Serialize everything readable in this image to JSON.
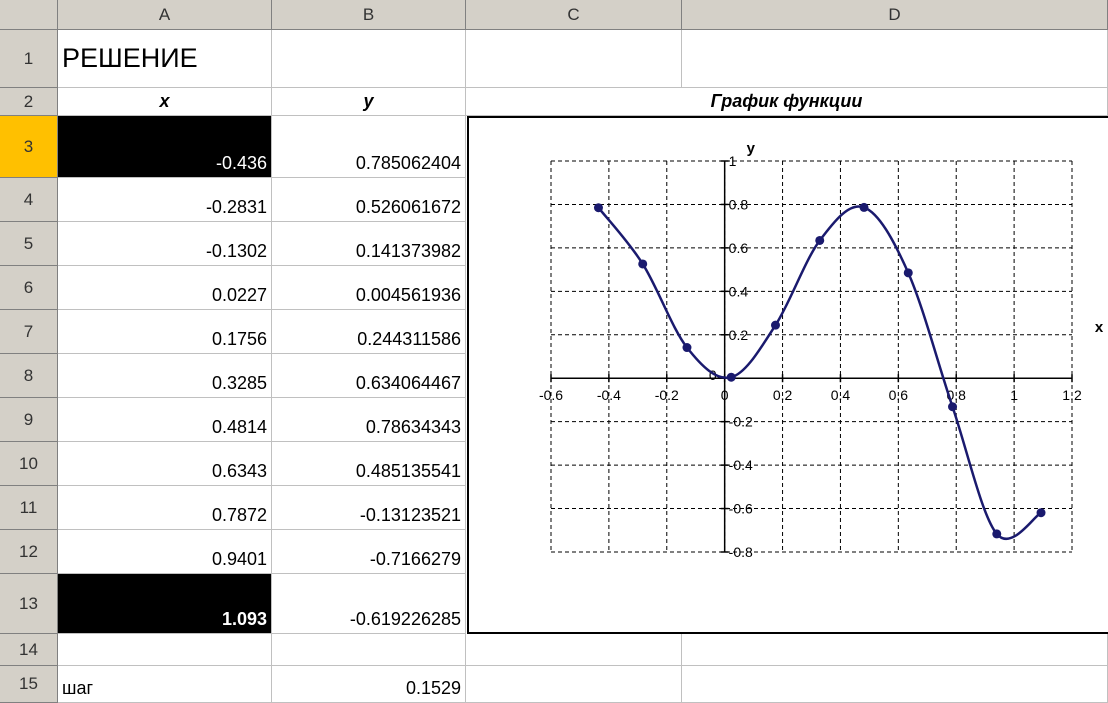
{
  "columns": [
    "A",
    "B",
    "C",
    "D"
  ],
  "rows": [
    "1",
    "2",
    "3",
    "4",
    "5",
    "6",
    "7",
    "8",
    "9",
    "10",
    "11",
    "12",
    "13",
    "14",
    "15"
  ],
  "cells": {
    "a1": "РЕШЕНИЕ",
    "a2": "x",
    "b2": "y",
    "cd2": "График функции",
    "a15": "шаг",
    "b15": "0.1529"
  },
  "table": [
    {
      "x": "-0.436",
      "y": "0.785062404"
    },
    {
      "x": "-0.2831",
      "y": "0.526061672"
    },
    {
      "x": "-0.1302",
      "y": "0.141373982"
    },
    {
      "x": "0.0227",
      "y": "0.004561936"
    },
    {
      "x": "0.1756",
      "y": "0.244311586"
    },
    {
      "x": "0.3285",
      "y": "0.634064467"
    },
    {
      "x": "0.4814",
      "y": "0.78634343"
    },
    {
      "x": "0.6343",
      "y": "0.485135541"
    },
    {
      "x": "0.7872",
      "y": "-0.13123521"
    },
    {
      "x": "0.9401",
      "y": "-0.7166279"
    },
    {
      "x": "1.093",
      "y": "-0.619226285"
    }
  ],
  "chart_data": {
    "type": "line",
    "xlabel": "x",
    "ylabel": "y",
    "xlim": [
      -0.6,
      1.2
    ],
    "ylim": [
      -0.8,
      1
    ],
    "xticks": [
      "-0.6",
      "-0.4",
      "-0.2",
      "0",
      "0.2",
      "0.4",
      "0.6",
      "0.8",
      "1",
      "1.2"
    ],
    "yticks": [
      "-0.8",
      "-0.6",
      "-0.4",
      "-0.2",
      "0",
      "0.2",
      "0.4",
      "0.6",
      "0.8",
      "1"
    ],
    "grid": true,
    "smooth": true,
    "series": [
      {
        "color": "#1a1a6e",
        "x": [
          -0.436,
          -0.2831,
          -0.1302,
          0.0227,
          0.1756,
          0.3285,
          0.4814,
          0.6343,
          0.7872,
          0.9401,
          1.093
        ],
        "y": [
          0.785062404,
          0.526061672,
          0.141373982,
          0.004561936,
          0.244311586,
          0.634064467,
          0.78634343,
          0.485135541,
          -0.13123521,
          -0.7166279,
          -0.619226285
        ]
      }
    ]
  }
}
